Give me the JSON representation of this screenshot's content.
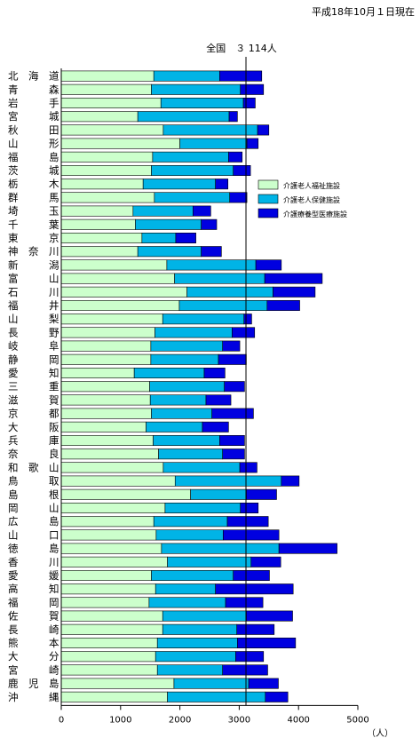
{
  "chart_data": {
    "type": "bar",
    "orientation": "horizontal",
    "stacked": true,
    "date_note": "平成18年10月１日現在",
    "average_label": "全国　３ 114人",
    "average_value": 3114,
    "x_unit": "（人）",
    "xlim": [
      0,
      5000
    ],
    "x_ticks": [
      0,
      1000,
      2000,
      3000,
      4000,
      5000
    ],
    "grid": false,
    "legend_position": "right",
    "categories": [
      "北海道",
      "青森",
      "岩手",
      "宮城",
      "秋田",
      "山形",
      "福島",
      "茨城",
      "栃木",
      "群馬",
      "埼玉",
      "千葉",
      "東京",
      "神奈川",
      "新潟",
      "富山",
      "石川",
      "福井",
      "山梨",
      "長野",
      "岐阜",
      "静岡",
      "愛知",
      "三重",
      "滋賀",
      "京都",
      "大阪",
      "兵庫",
      "奈良",
      "和歌山",
      "鳥取",
      "島根",
      "岡山",
      "広島",
      "山口",
      "徳島",
      "香川",
      "愛媛",
      "高知",
      "福岡",
      "佐賀",
      "長崎",
      "熊本",
      "大分",
      "宮崎",
      "鹿児島",
      "沖縄"
    ],
    "category_display": [
      "北　海　道",
      "青　　　森",
      "岩　　　手",
      "宮　　　城",
      "秋　　　田",
      "山　　　形",
      "福　　　島",
      "茨　　　城",
      "栃　　　木",
      "群　　　馬",
      "埼　　　玉",
      "千　　　葉",
      "東　　　京",
      "神　奈　川",
      "新　　　潟",
      "富　　　山",
      "石　　　川",
      "福　　　井",
      "山　　　梨",
      "長　　　野",
      "岐　　　阜",
      "静　　　岡",
      "愛　　　知",
      "三　　　重",
      "滋　　　賀",
      "京　　　都",
      "大　　　阪",
      "兵　　　庫",
      "奈　　　良",
      "和　歌　山",
      "鳥　　　取",
      "島　　　根",
      "岡　　　山",
      "広　　　島",
      "山　　　口",
      "徳　　　島",
      "香　　　川",
      "愛　　　媛",
      "高　　　知",
      "福　　　岡",
      "佐　　　賀",
      "長　　　崎",
      "熊　　　本",
      "大　　　分",
      "宮　　　崎",
      "鹿　児　島",
      "沖　　　縄"
    ],
    "series": [
      {
        "name": "介護老人福祉施設",
        "color": "#ccffcc",
        "values": [
          1560,
          1520,
          1680,
          1290,
          1720,
          2000,
          1540,
          1520,
          1380,
          1570,
          1210,
          1250,
          1360,
          1290,
          1780,
          1910,
          2120,
          1990,
          1710,
          1580,
          1510,
          1510,
          1230,
          1490,
          1500,
          1520,
          1430,
          1550,
          1640,
          1720,
          1920,
          2180,
          1750,
          1560,
          1600,
          1690,
          1790,
          1520,
          1590,
          1480,
          1710,
          1710,
          1620,
          1590,
          1620,
          1900,
          1790
        ]
      },
      {
        "name": "介護老人保健施設",
        "color": "#00b4e6",
        "values": [
          1110,
          1500,
          1390,
          1540,
          1590,
          1130,
          1280,
          1380,
          1220,
          1270,
          1010,
          1110,
          570,
          1070,
          1500,
          1520,
          1450,
          1480,
          1370,
          1300,
          1210,
          1140,
          1180,
          1260,
          940,
          1020,
          950,
          1120,
          1080,
          1290,
          1790,
          940,
          1270,
          1240,
          1130,
          1980,
          1410,
          1380,
          1010,
          1290,
          1410,
          1250,
          1350,
          1350,
          1100,
          1260,
          1650
        ]
      },
      {
        "name": "介護療養型医療施設",
        "color": "#0000e0",
        "values": [
          710,
          390,
          200,
          140,
          190,
          190,
          230,
          290,
          210,
          290,
          300,
          260,
          340,
          340,
          430,
          970,
          710,
          550,
          130,
          380,
          290,
          470,
          350,
          340,
          420,
          700,
          440,
          420,
          370,
          290,
          300,
          510,
          300,
          690,
          940,
          980,
          500,
          610,
          1310,
          630,
          780,
          630,
          980,
          470,
          760,
          500,
          380
        ]
      }
    ]
  }
}
